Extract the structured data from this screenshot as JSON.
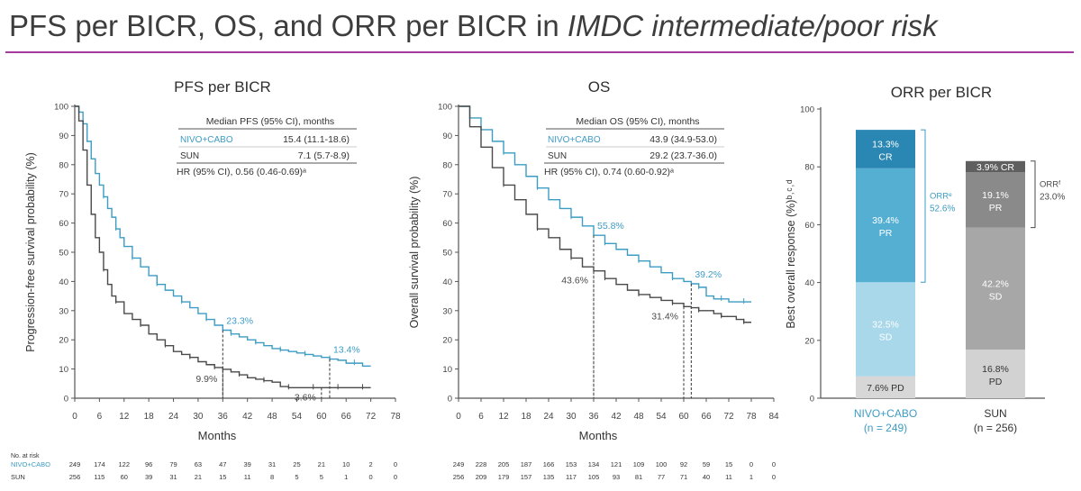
{
  "slide_title": {
    "regular": "PFS per BICR, OS, and ORR per BICR in ",
    "italic": "IMDC intermediate/poor risk"
  },
  "colors": {
    "accent_title_rule": "#a53b9e",
    "nivo_cabo": "#3d9cc4",
    "sun": "#4a4a4a"
  },
  "chart_data": [
    {
      "type": "line",
      "title": "PFS per BICR",
      "xlabel": "Months",
      "ylabel": "Progression-free survival probability (%)",
      "xlim": [
        0,
        78
      ],
      "ylim": [
        0,
        100
      ],
      "xticks": [
        0,
        6,
        12,
        18,
        24,
        30,
        36,
        42,
        48,
        54,
        60,
        66,
        72,
        78
      ],
      "yticks": [
        0,
        10,
        20,
        30,
        40,
        50,
        60,
        70,
        80,
        90,
        100
      ],
      "series": [
        {
          "name": "NIVO+CABO",
          "color": "#3d9cc4",
          "points": [
            [
              0,
              100
            ],
            [
              1,
              98
            ],
            [
              2,
              94
            ],
            [
              3,
              88
            ],
            [
              4,
              82
            ],
            [
              5,
              77
            ],
            [
              6,
              73
            ],
            [
              7,
              69
            ],
            [
              8,
              65
            ],
            [
              9,
              62
            ],
            [
              10,
              58
            ],
            [
              11,
              55
            ],
            [
              12,
              52
            ],
            [
              14,
              48
            ],
            [
              16,
              45
            ],
            [
              18,
              42
            ],
            [
              20,
              39
            ],
            [
              22,
              37
            ],
            [
              24,
              35
            ],
            [
              26,
              33
            ],
            [
              28,
              31
            ],
            [
              30,
              29
            ],
            [
              32,
              27
            ],
            [
              34,
              25
            ],
            [
              36,
              23.3
            ],
            [
              38,
              22
            ],
            [
              40,
              21
            ],
            [
              42,
              20
            ],
            [
              44,
              19
            ],
            [
              46,
              18
            ],
            [
              48,
              17
            ],
            [
              50,
              16.5
            ],
            [
              52,
              16
            ],
            [
              54,
              15.5
            ],
            [
              56,
              15
            ],
            [
              58,
              14.5
            ],
            [
              60,
              14
            ],
            [
              62,
              13.4
            ],
            [
              64,
              13
            ],
            [
              66,
              12
            ],
            [
              68,
              12
            ],
            [
              70,
              11
            ],
            [
              72,
              11
            ]
          ],
          "annotations": [
            {
              "x": 36,
              "y": 23.3,
              "label": "23.3%"
            },
            {
              "x": 62,
              "y": 13.4,
              "label": "13.4%"
            }
          ]
        },
        {
          "name": "SUN",
          "color": "#4a4a4a",
          "points": [
            [
              0,
              100
            ],
            [
              1,
              95
            ],
            [
              2,
              85
            ],
            [
              3,
              73
            ],
            [
              4,
              63
            ],
            [
              5,
              55
            ],
            [
              6,
              50
            ],
            [
              7,
              44
            ],
            [
              8,
              39
            ],
            [
              9,
              35
            ],
            [
              10,
              33
            ],
            [
              12,
              29
            ],
            [
              14,
              27
            ],
            [
              16,
              25
            ],
            [
              18,
              22
            ],
            [
              20,
              20
            ],
            [
              22,
              18
            ],
            [
              24,
              16
            ],
            [
              26,
              15
            ],
            [
              28,
              14
            ],
            [
              30,
              12.5
            ],
            [
              32,
              11.5
            ],
            [
              34,
              10.5
            ],
            [
              36,
              9.9
            ],
            [
              38,
              9
            ],
            [
              40,
              8
            ],
            [
              42,
              7
            ],
            [
              44,
              6.5
            ],
            [
              46,
              6
            ],
            [
              48,
              5.5
            ],
            [
              50,
              4
            ],
            [
              52,
              3.6
            ],
            [
              54,
              3.6
            ],
            [
              56,
              3.6
            ],
            [
              58,
              3.6
            ],
            [
              60,
              3.6
            ],
            [
              62,
              3.6
            ],
            [
              64,
              3.6
            ],
            [
              66,
              3.6
            ],
            [
              68,
              3.6
            ],
            [
              70,
              3.6
            ],
            [
              72,
              3.6
            ]
          ],
          "annotations": [
            {
              "x": 36,
              "y": 9.9,
              "label": "9.9%"
            },
            {
              "x": 60,
              "y": 3.6,
              "label": "3.6%"
            }
          ]
        }
      ],
      "legend_table": {
        "header": "Median PFS (95% CI), months",
        "rows": [
          {
            "label": "NIVO+CABO",
            "value": "15.4 (11.1-18.6)"
          },
          {
            "label": "SUN",
            "value": "7.1 (5.7-8.9)"
          }
        ],
        "footer": "HR (95% CI), 0.56 (0.46-0.69)ᵃ"
      },
      "risk_table": {
        "header": "No. at risk",
        "rows": [
          {
            "label": "NIVO+CABO",
            "values": [
              "249",
              "174",
              "122",
              "96",
              "79",
              "63",
              "47",
              "39",
              "31",
              "25",
              "21",
              "10",
              "2",
              "0"
            ]
          },
          {
            "label": "SUN",
            "values": [
              "256",
              "115",
              "60",
              "39",
              "31",
              "21",
              "15",
              "11",
              "8",
              "5",
              "5",
              "1",
              "0",
              "0"
            ]
          }
        ]
      }
    },
    {
      "type": "line",
      "title": "OS",
      "xlabel": "Months",
      "ylabel": "Overall survival probability (%)",
      "xlim": [
        0,
        84
      ],
      "ylim": [
        0,
        100
      ],
      "xticks": [
        0,
        6,
        12,
        18,
        24,
        30,
        36,
        42,
        48,
        54,
        60,
        66,
        72,
        78,
        84
      ],
      "yticks": [
        0,
        10,
        20,
        30,
        40,
        50,
        60,
        70,
        80,
        90,
        100
      ],
      "series": [
        {
          "name": "NIVO+CABO",
          "color": "#3d9cc4",
          "points": [
            [
              0,
              100
            ],
            [
              3,
              96
            ],
            [
              6,
              92
            ],
            [
              9,
              88
            ],
            [
              12,
              84
            ],
            [
              15,
              80
            ],
            [
              18,
              76
            ],
            [
              21,
              72
            ],
            [
              24,
              68
            ],
            [
              27,
              65
            ],
            [
              30,
              62
            ],
            [
              33,
              59
            ],
            [
              36,
              55.8
            ],
            [
              39,
              53
            ],
            [
              42,
              51
            ],
            [
              45,
              49
            ],
            [
              48,
              47
            ],
            [
              51,
              45
            ],
            [
              54,
              43
            ],
            [
              57,
              41
            ],
            [
              60,
              40
            ],
            [
              62,
              39.2
            ],
            [
              64,
              38
            ],
            [
              66,
              35
            ],
            [
              68,
              34
            ],
            [
              70,
              34
            ],
            [
              72,
              33
            ],
            [
              74,
              33
            ],
            [
              76,
              33
            ],
            [
              78,
              33
            ]
          ],
          "annotations": [
            {
              "x": 36,
              "y": 55.8,
              "label": "55.8%"
            },
            {
              "x": 62,
              "y": 39.2,
              "label": "39.2%"
            }
          ]
        },
        {
          "name": "SUN",
          "color": "#4a4a4a",
          "points": [
            [
              0,
              100
            ],
            [
              3,
              93
            ],
            [
              6,
              86
            ],
            [
              9,
              79
            ],
            [
              12,
              73
            ],
            [
              15,
              68
            ],
            [
              18,
              63
            ],
            [
              21,
              58
            ],
            [
              24,
              55
            ],
            [
              27,
              51
            ],
            [
              30,
              48
            ],
            [
              33,
              45
            ],
            [
              36,
              43.6
            ],
            [
              39,
              41
            ],
            [
              42,
              39
            ],
            [
              45,
              37
            ],
            [
              48,
              35.5
            ],
            [
              51,
              34.5
            ],
            [
              54,
              33.5
            ],
            [
              57,
              32.5
            ],
            [
              60,
              31.4
            ],
            [
              62,
              31
            ],
            [
              64,
              30
            ],
            [
              66,
              30
            ],
            [
              68,
              29
            ],
            [
              70,
              28
            ],
            [
              72,
              28
            ],
            [
              74,
              27
            ],
            [
              76,
              26
            ],
            [
              78,
              26
            ]
          ],
          "annotations": [
            {
              "x": 36,
              "y": 43.6,
              "label": "43.6%"
            },
            {
              "x": 60,
              "y": 31.4,
              "label": "31.4%"
            }
          ]
        }
      ],
      "legend_table": {
        "header": "Median OS (95% CI), months",
        "rows": [
          {
            "label": "NIVO+CABO",
            "value": "43.9 (34.9-53.0)"
          },
          {
            "label": "SUN",
            "value": "29.2 (23.7-36.0)"
          }
        ],
        "footer": "HR (95% CI), 0.74 (0.60-0.92)ᵃ"
      },
      "risk_table": {
        "rows": [
          {
            "label": "NIVO+CABO",
            "values": [
              "249",
              "228",
              "205",
              "187",
              "166",
              "153",
              "134",
              "121",
              "109",
              "100",
              "92",
              "59",
              "15",
              "0",
              "0"
            ]
          },
          {
            "label": "SUN",
            "values": [
              "256",
              "209",
              "179",
              "157",
              "135",
              "117",
              "105",
              "93",
              "81",
              "77",
              "71",
              "40",
              "11",
              "1",
              "0"
            ]
          }
        ]
      }
    },
    {
      "type": "bar",
      "stacked": true,
      "title": "ORR per BICR",
      "ylabel": "Best overall response (%)ᵇ˒ᶜ˒ᵈ",
      "ylim": [
        0,
        100
      ],
      "yticks": [
        0,
        20,
        40,
        60,
        80,
        100
      ],
      "categories": [
        "NIVO+CABO\n(n = 249)",
        "SUN\n(n = 256)"
      ],
      "category_lines": [
        [
          "NIVO+CABO",
          "(n = 249)"
        ],
        [
          "SUN",
          "(n = 256)"
        ]
      ],
      "stacks": [
        [
          {
            "label": "PD",
            "value": 7.6,
            "text": [
              "7.6% PD"
            ],
            "color": "#d7d7d7",
            "text_color": "#333333"
          },
          {
            "label": "SD",
            "value": 32.5,
            "text": [
              "32.5%",
              "SD"
            ],
            "color": "#a9d8ea",
            "text_color": "#ffffff"
          },
          {
            "label": "PR",
            "value": 39.4,
            "text": [
              "39.4%",
              "PR"
            ],
            "color": "#55afd3",
            "text_color": "#ffffff"
          },
          {
            "label": "CR",
            "value": 13.3,
            "text": [
              "13.3%",
              "CR"
            ],
            "color": "#2a87b3",
            "text_color": "#ffffff"
          }
        ],
        [
          {
            "label": "PD",
            "value": 16.8,
            "text": [
              "16.8%",
              "PD"
            ],
            "color": "#d2d2d2",
            "text_color": "#333333"
          },
          {
            "label": "SD",
            "value": 42.2,
            "text": [
              "42.2%",
              "SD"
            ],
            "color": "#a7a7a7",
            "text_color": "#ffffff"
          },
          {
            "label": "PR",
            "value": 19.1,
            "text": [
              "19.1%",
              "PR"
            ],
            "color": "#8a8a8a",
            "text_color": "#ffffff"
          },
          {
            "label": "CR",
            "value": 3.9,
            "text": [
              "3.9% CR"
            ],
            "color": "#5f5f5f",
            "text_color": "#ffffff"
          }
        ]
      ],
      "orr_labels": [
        {
          "lines": [
            "ORRᵉ",
            "52.6%"
          ],
          "color": "#3d9cc4"
        },
        {
          "lines": [
            "ORRᶠ",
            "23.0%"
          ],
          "color": "#4a4a4a"
        }
      ]
    }
  ]
}
